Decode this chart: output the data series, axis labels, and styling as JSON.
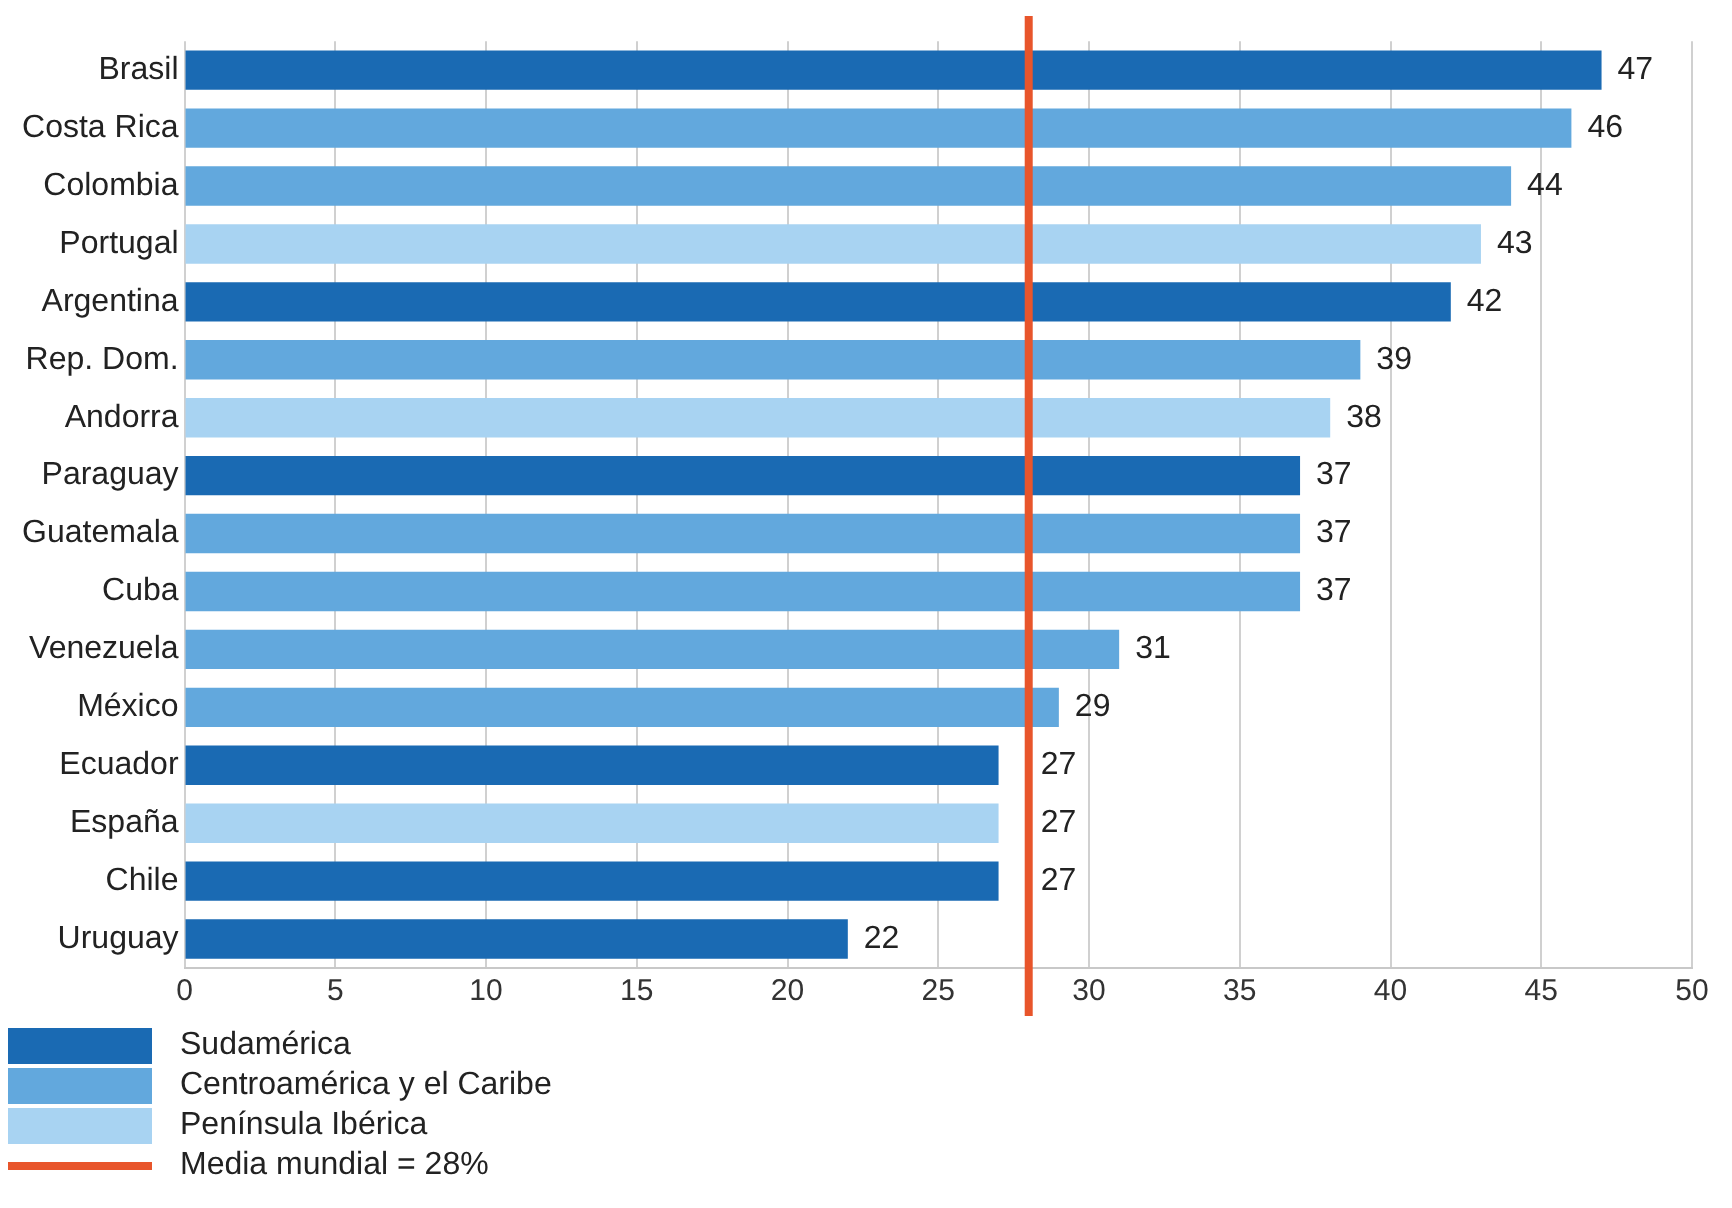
{
  "chart_data": {
    "type": "bar",
    "orientation": "horizontal",
    "categories": [
      "Brasil",
      "Costa Rica",
      "Colombia",
      "Portugal",
      "Argentina",
      "Rep. Dom.",
      "Andorra",
      "Paraguay",
      "Guatemala",
      "Cuba",
      "Venezuela",
      "México",
      "Ecuador",
      "España",
      "Chile",
      "Uruguay"
    ],
    "series": [
      {
        "name": "Sudamérica",
        "color": "#1a6ab3",
        "values": [
          47,
          null,
          null,
          null,
          42,
          null,
          null,
          37,
          null,
          null,
          null,
          null,
          27,
          null,
          27,
          22
        ]
      },
      {
        "name": "Centroamérica y el Caribe",
        "color": "#62a8dd",
        "values": [
          null,
          46,
          44,
          null,
          null,
          39,
          null,
          null,
          37,
          37,
          31,
          29,
          null,
          null,
          null,
          null
        ]
      },
      {
        "name": "Península Ibérica",
        "color": "#a8d3f2",
        "values": [
          null,
          null,
          null,
          43,
          null,
          null,
          38,
          null,
          null,
          null,
          null,
          null,
          null,
          27,
          null,
          null
        ]
      }
    ],
    "xlim": [
      0,
      50
    ],
    "xticks": [
      0,
      5,
      10,
      15,
      20,
      25,
      30,
      35,
      40,
      45,
      50
    ],
    "grid": "x",
    "legend": "bottom",
    "data_labels": true,
    "ref_lines": [
      {
        "axis": "x",
        "value": 28,
        "label": "Media mundial = 28%",
        "color": "#e8552b"
      }
    ]
  }
}
